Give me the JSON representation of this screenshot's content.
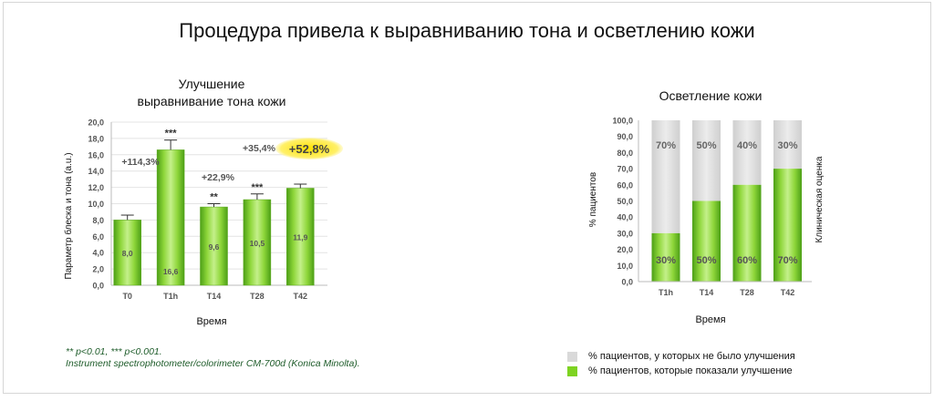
{
  "title": "Процедура привела к выравниванию тона и осветлению кожи",
  "colors": {
    "green": "#7ed321",
    "green_dark": "#4a9e12",
    "grey": "#d9d9d9",
    "highlight": "#ffe100",
    "axis_text": "#555555"
  },
  "chart_data": [
    {
      "type": "bar",
      "title": "Улучшение\nвыравнивание тона кожи",
      "title_lines": [
        "Улучшение",
        "выравнивание тона кожи"
      ],
      "xlabel": "Время",
      "ylabel": "Параметр блеска и тона (a.u.)",
      "ylim": [
        0,
        20
      ],
      "yticks": [
        "20,0",
        "18,0",
        "16,0",
        "14,0",
        "12,0",
        "10,0",
        "8,0",
        "6,0",
        "4,0",
        "2,0",
        "0,0"
      ],
      "grid": true,
      "categories": [
        "T0",
        "T1h",
        "T14",
        "T28",
        "T42"
      ],
      "values": [
        8.0,
        16.6,
        9.6,
        10.5,
        11.9
      ],
      "value_labels": [
        "8,0",
        "16,6",
        "9,6",
        "10,5",
        "11,9"
      ],
      "error_upper": [
        8.6,
        17.8,
        10.0,
        11.2,
        12.4
      ],
      "significance": [
        "",
        "***",
        "**",
        "***",
        ""
      ],
      "annotations": [
        {
          "text": "+114,3%",
          "near": "T0"
        },
        {
          "text": "+22,9%",
          "near": "T14"
        },
        {
          "text": "+35,4%",
          "near": "T28"
        },
        {
          "text": "+52,8%",
          "near": "T42",
          "highlight": true
        }
      ]
    },
    {
      "type": "bar",
      "stacked": true,
      "title": "Осветление кожи",
      "xlabel": "Время",
      "ylabel": "% пациентов",
      "ylabel_right": "Клиническая оценка",
      "ylim": [
        0,
        100
      ],
      "yticks": [
        "100,0",
        "90,0",
        "80,0",
        "70,0",
        "60,0",
        "50,0",
        "40,0",
        "30,0",
        "20,0",
        "10,0",
        "0,0"
      ],
      "categories": [
        "T1h",
        "T14",
        "T28",
        "T42"
      ],
      "series": [
        {
          "name": "% пациентов, которые показали улучшение",
          "values": [
            30,
            50,
            60,
            70
          ],
          "labels": [
            "30%",
            "50%",
            "60%",
            "70%"
          ]
        },
        {
          "name": "% пациентов, у которых не было улучшения",
          "values": [
            70,
            50,
            40,
            30
          ],
          "labels": [
            "70%",
            "50%",
            "40%",
            "30%"
          ]
        }
      ]
    }
  ],
  "footnote": {
    "line1": "** p<0.01, *** p<0.001.",
    "line2": "Instrument spectrophotometer/colorimeter CM-700d (Konica Minolta)."
  },
  "legend": [
    {
      "label": "% пациентов, у которых не было улучшения",
      "color": "#d9d9d9"
    },
    {
      "label": "% пациентов, которые показали улучшение",
      "color": "#7ed321"
    }
  ]
}
